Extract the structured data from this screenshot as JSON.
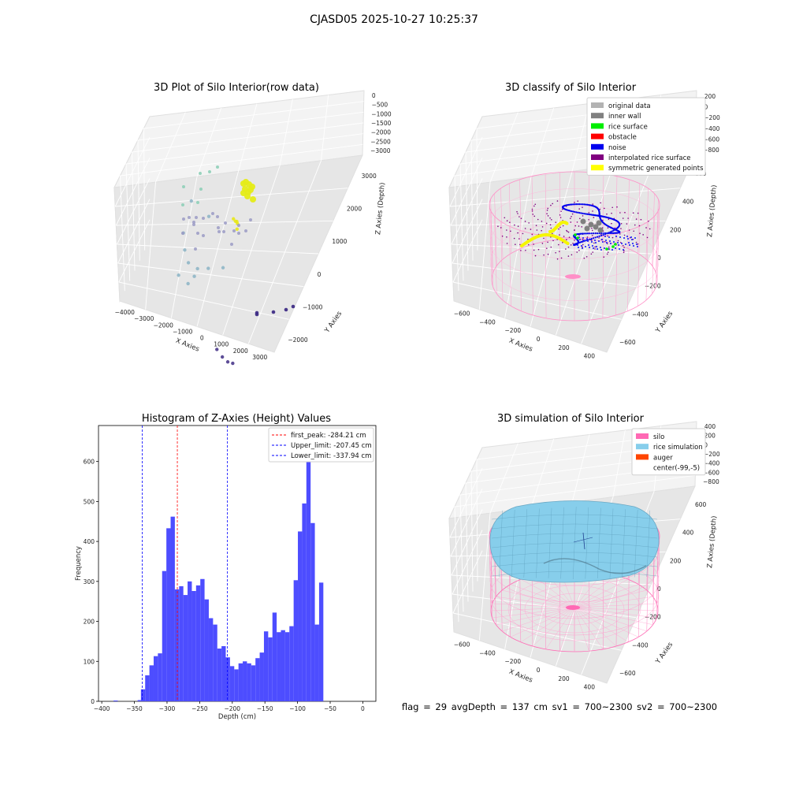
{
  "figure": {
    "title": "CJASD05 2025-10-27 10:25:37",
    "footer": "flag = 29  avgDepth = 137 cm  sv1 = 700~2300  sv2 = 700~2300"
  },
  "chart_data": [
    {
      "type": "scatter",
      "subtype": "3d",
      "title": "3D Plot of Silo Interior(row data)",
      "xlabel": "X Axies",
      "ylabel": "Y Axies",
      "zlabel": "Z Axies (Depth)",
      "xticks": [
        "−4000",
        "−3000",
        "−2000",
        "−1000",
        "0",
        "1000",
        "2000",
        "3000"
      ],
      "yticks": [
        "−2000",
        "−1000",
        "0",
        "1000",
        "2000",
        "3000"
      ],
      "zticks": [
        "0",
        "−500",
        "−1000",
        "−1500",
        "−2000",
        "−2500",
        "−3000"
      ],
      "series": [
        {
          "color": "#8fb6c6",
          "points": [
            [
              -1900,
              2000,
              -300
            ],
            [
              -1200,
              2100,
              -700
            ],
            [
              -2100,
              1800,
              -1500
            ],
            [
              -1800,
              1500,
              -1900
            ],
            [
              -1400,
              1200,
              -2100
            ],
            [
              -900,
              900,
              -2300
            ],
            [
              -600,
              700,
              -1800
            ],
            [
              -200,
              800,
              -1700
            ],
            [
              300,
              1000,
              -1600
            ],
            [
              -1600,
              900,
              -2500
            ],
            [
              -1100,
              800,
              -2600
            ]
          ]
        },
        {
          "color": "#e8e81a",
          "points": [
            [
              -500,
              2600,
              -800
            ],
            [
              -450,
              2650,
              -900
            ],
            [
              -400,
              2700,
              -1000
            ],
            [
              -350,
              2600,
              -850
            ],
            [
              -300,
              2550,
              -1100
            ]
          ]
        },
        {
          "color": "#4b3a8c",
          "points": [
            [
              2000,
              -1500,
              -2900
            ],
            [
              2400,
              -1700,
              -2950
            ],
            [
              2800,
              -1900,
              -2900
            ],
            [
              3100,
              -2000,
              -2800
            ]
          ]
        }
      ]
    },
    {
      "type": "scatter",
      "subtype": "3d",
      "title": "3D classify of Silo Interior",
      "xlabel": "X Axies",
      "ylabel": "Y Axies",
      "zlabel": "Z Axies (Depth)",
      "xticks": [
        "−600",
        "−400",
        "−200",
        "0",
        "200",
        "400"
      ],
      "yticks": [
        "−600",
        "−400",
        "−200",
        "0",
        "200",
        "400",
        "600"
      ],
      "zticks": [
        "200",
        "0",
        "−200",
        "−400",
        "−600",
        "−800"
      ],
      "legend": [
        {
          "label": "original data",
          "color": "#b3b3b3"
        },
        {
          "label": "inner wall",
          "color": "#808080"
        },
        {
          "label": "rice surface",
          "color": "#00ee00"
        },
        {
          "label": "obstacle",
          "color": "#ff0000"
        },
        {
          "label": "noise",
          "color": "#0000ee"
        },
        {
          "label": "interpolated rice surface",
          "color": "#800080"
        },
        {
          "label": "symmetric generated points",
          "color": "#ffff00"
        }
      ],
      "legend_loc": "upper right"
    },
    {
      "type": "bar",
      "subtype": "histogram",
      "title": "Histogram of Z-Axies (Height) Values",
      "xlabel": "Depth (cm)",
      "ylabel": "Frequency",
      "xlim": [
        -405,
        20
      ],
      "ylim": [
        0,
        690
      ],
      "xticks": [
        "−400",
        "−350",
        "−300",
        "−250",
        "−200",
        "−150",
        "−100",
        "−50",
        "0"
      ],
      "yticks": [
        "0",
        "100",
        "200",
        "300",
        "400",
        "500",
        "600"
      ],
      "bin_edges_start": -340,
      "bin_width": 6.5,
      "values": [
        30,
        65,
        90,
        113,
        120,
        326,
        433,
        462,
        280,
        288,
        266,
        300,
        276,
        290,
        306,
        255,
        208,
        192,
        132,
        138,
        110,
        88,
        80,
        95,
        100,
        95,
        90,
        108,
        122,
        175,
        160,
        222,
        173,
        178,
        173,
        188,
        303,
        425,
        495,
        655,
        446,
        192,
        297
      ],
      "extra_bins": [
        {
          "x": -382,
          "w": 6.5,
          "v": 2
        },
        {
          "x": -345,
          "w": 5,
          "v": 3
        }
      ],
      "bar_color": "#4d4dff",
      "vlines": [
        {
          "label": "first_peak: -284.21 cm",
          "x": -284.21,
          "color": "#ff0000"
        },
        {
          "label": "Upper_limit: -207.45 cm",
          "x": -207.45,
          "color": "#0000ff"
        },
        {
          "label": "Lower_limit: -337.94 cm",
          "x": -337.94,
          "color": "#0000ff"
        }
      ],
      "legend_loc": "upper right"
    },
    {
      "type": "surface",
      "subtype": "3d",
      "title": "3D simulation of Silo Interior",
      "xlabel": "X Axies",
      "ylabel": "Y Axies",
      "zlabel": "Z Axies (Depth)",
      "xticks": [
        "−600",
        "−400",
        "−200",
        "0",
        "200",
        "400"
      ],
      "yticks": [
        "−600",
        "−400",
        "−200",
        "0",
        "200",
        "400",
        "600"
      ],
      "zticks": [
        "400",
        "200",
        "0",
        "−200",
        "−400",
        "−600",
        "−800"
      ],
      "legend": [
        {
          "label": "silo",
          "color": "#ff69b4"
        },
        {
          "label": "rice simulation",
          "color": "#87ceeb"
        },
        {
          "label": "auger",
          "color": "#ff4500"
        },
        {
          "label": "center(-99,-5)",
          "color": ""
        }
      ],
      "legend_loc": "upper right"
    }
  ]
}
